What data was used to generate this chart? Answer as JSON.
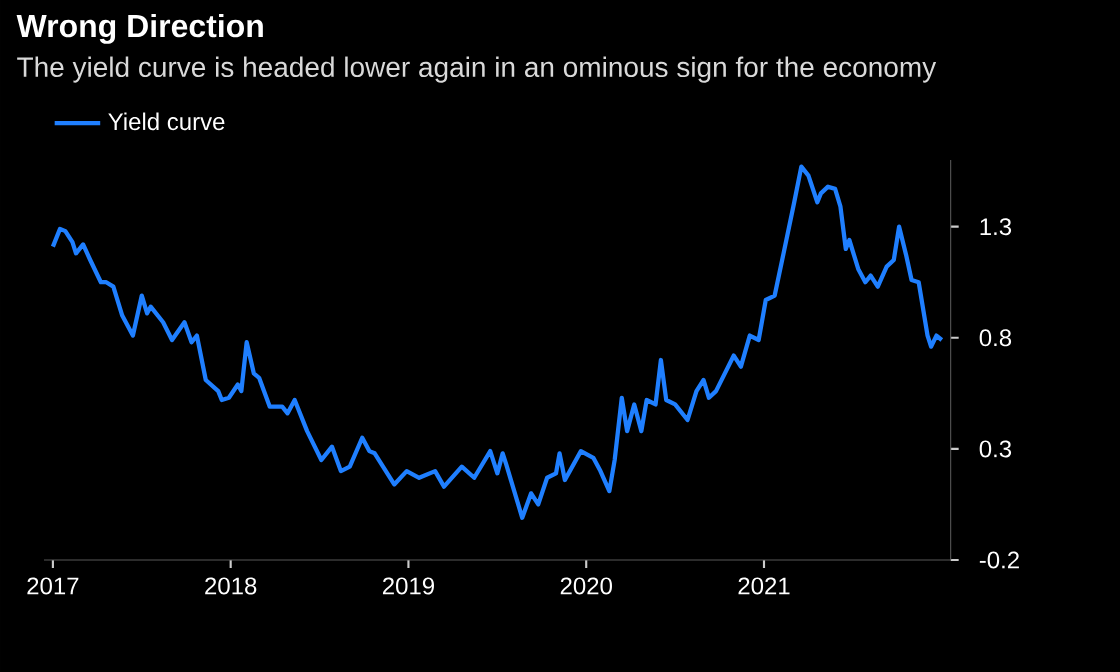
{
  "chart_data": {
    "type": "line",
    "title": "Wrong Direction",
    "subtitle": "The yield curve is headed lower again in an ominous sign for the economy",
    "series": [
      {
        "name": "Yield curve",
        "color": "#1f7fff",
        "x": [
          2017.0,
          2017.04,
          2017.07,
          2017.11,
          2017.13,
          2017.17,
          2017.21,
          2017.27,
          2017.3,
          2017.34,
          2017.39,
          2017.45,
          2017.5,
          2017.53,
          2017.55,
          2017.62,
          2017.67,
          2017.74,
          2017.78,
          2017.81,
          2017.86,
          2017.93,
          2017.95,
          2017.99,
          2018.04,
          2018.06,
          2018.09,
          2018.13,
          2018.16,
          2018.22,
          2018.29,
          2018.32,
          2018.36,
          2018.43,
          2018.51,
          2018.57,
          2018.62,
          2018.67,
          2018.74,
          2018.78,
          2018.81,
          2018.92,
          2018.99,
          2019.06,
          2019.15,
          2019.2,
          2019.3,
          2019.37,
          2019.46,
          2019.5,
          2019.53,
          2019.55,
          2019.64,
          2019.69,
          2019.73,
          2019.78,
          2019.83,
          2019.85,
          2019.88,
          2019.97,
          2020.04,
          2020.08,
          2020.13,
          2020.16,
          2020.2,
          2020.23,
          2020.27,
          2020.31,
          2020.34,
          2020.39,
          2020.42,
          2020.45,
          2020.5,
          2020.57,
          2020.62,
          2020.66,
          2020.69,
          2020.73,
          2020.78,
          2020.83,
          2020.87,
          2020.92,
          2020.97,
          2021.01,
          2021.06,
          2021.11,
          2021.17,
          2021.21,
          2021.25,
          2021.3,
          2021.32,
          2021.36,
          2021.4,
          2021.43,
          2021.46,
          2021.48,
          2021.53,
          2021.57,
          2021.6,
          2021.64,
          2021.69,
          2021.73,
          2021.76,
          2021.8,
          2021.83,
          2021.87,
          2021.92,
          2021.94,
          2021.97,
          2022.0
        ],
        "values": [
          1.21,
          1.29,
          1.28,
          1.23,
          1.18,
          1.22,
          1.15,
          1.05,
          1.05,
          1.03,
          0.9,
          0.81,
          0.99,
          0.91,
          0.94,
          0.87,
          0.79,
          0.87,
          0.78,
          0.81,
          0.61,
          0.56,
          0.52,
          0.53,
          0.59,
          0.56,
          0.78,
          0.64,
          0.62,
          0.49,
          0.49,
          0.46,
          0.52,
          0.38,
          0.25,
          0.31,
          0.2,
          0.22,
          0.35,
          0.29,
          0.28,
          0.14,
          0.2,
          0.17,
          0.2,
          0.13,
          0.22,
          0.17,
          0.29,
          0.19,
          0.28,
          0.23,
          -0.01,
          0.1,
          0.05,
          0.17,
          0.19,
          0.28,
          0.16,
          0.29,
          0.26,
          0.2,
          0.11,
          0.25,
          0.53,
          0.38,
          0.5,
          0.38,
          0.52,
          0.5,
          0.7,
          0.52,
          0.5,
          0.43,
          0.56,
          0.61,
          0.53,
          0.56,
          0.64,
          0.72,
          0.67,
          0.81,
          0.79,
          0.97,
          0.99,
          1.18,
          1.41,
          1.57,
          1.53,
          1.41,
          1.45,
          1.48,
          1.47,
          1.39,
          1.2,
          1.24,
          1.11,
          1.05,
          1.08,
          1.03,
          1.12,
          1.15,
          1.3,
          1.17,
          1.06,
          1.05,
          0.81,
          0.76,
          0.81,
          0.79
        ]
      }
    ],
    "xlim": [
      2016.95,
      2022.05
    ],
    "xticks": [
      2017,
      2018,
      2019,
      2020,
      2021
    ],
    "ylim": [
      -0.2,
      1.6
    ],
    "yticks": [
      -0.2,
      0.3,
      0.8,
      1.3
    ],
    "legend": "top left",
    "grid": false,
    "marker": "none",
    "line_style": "solid"
  }
}
